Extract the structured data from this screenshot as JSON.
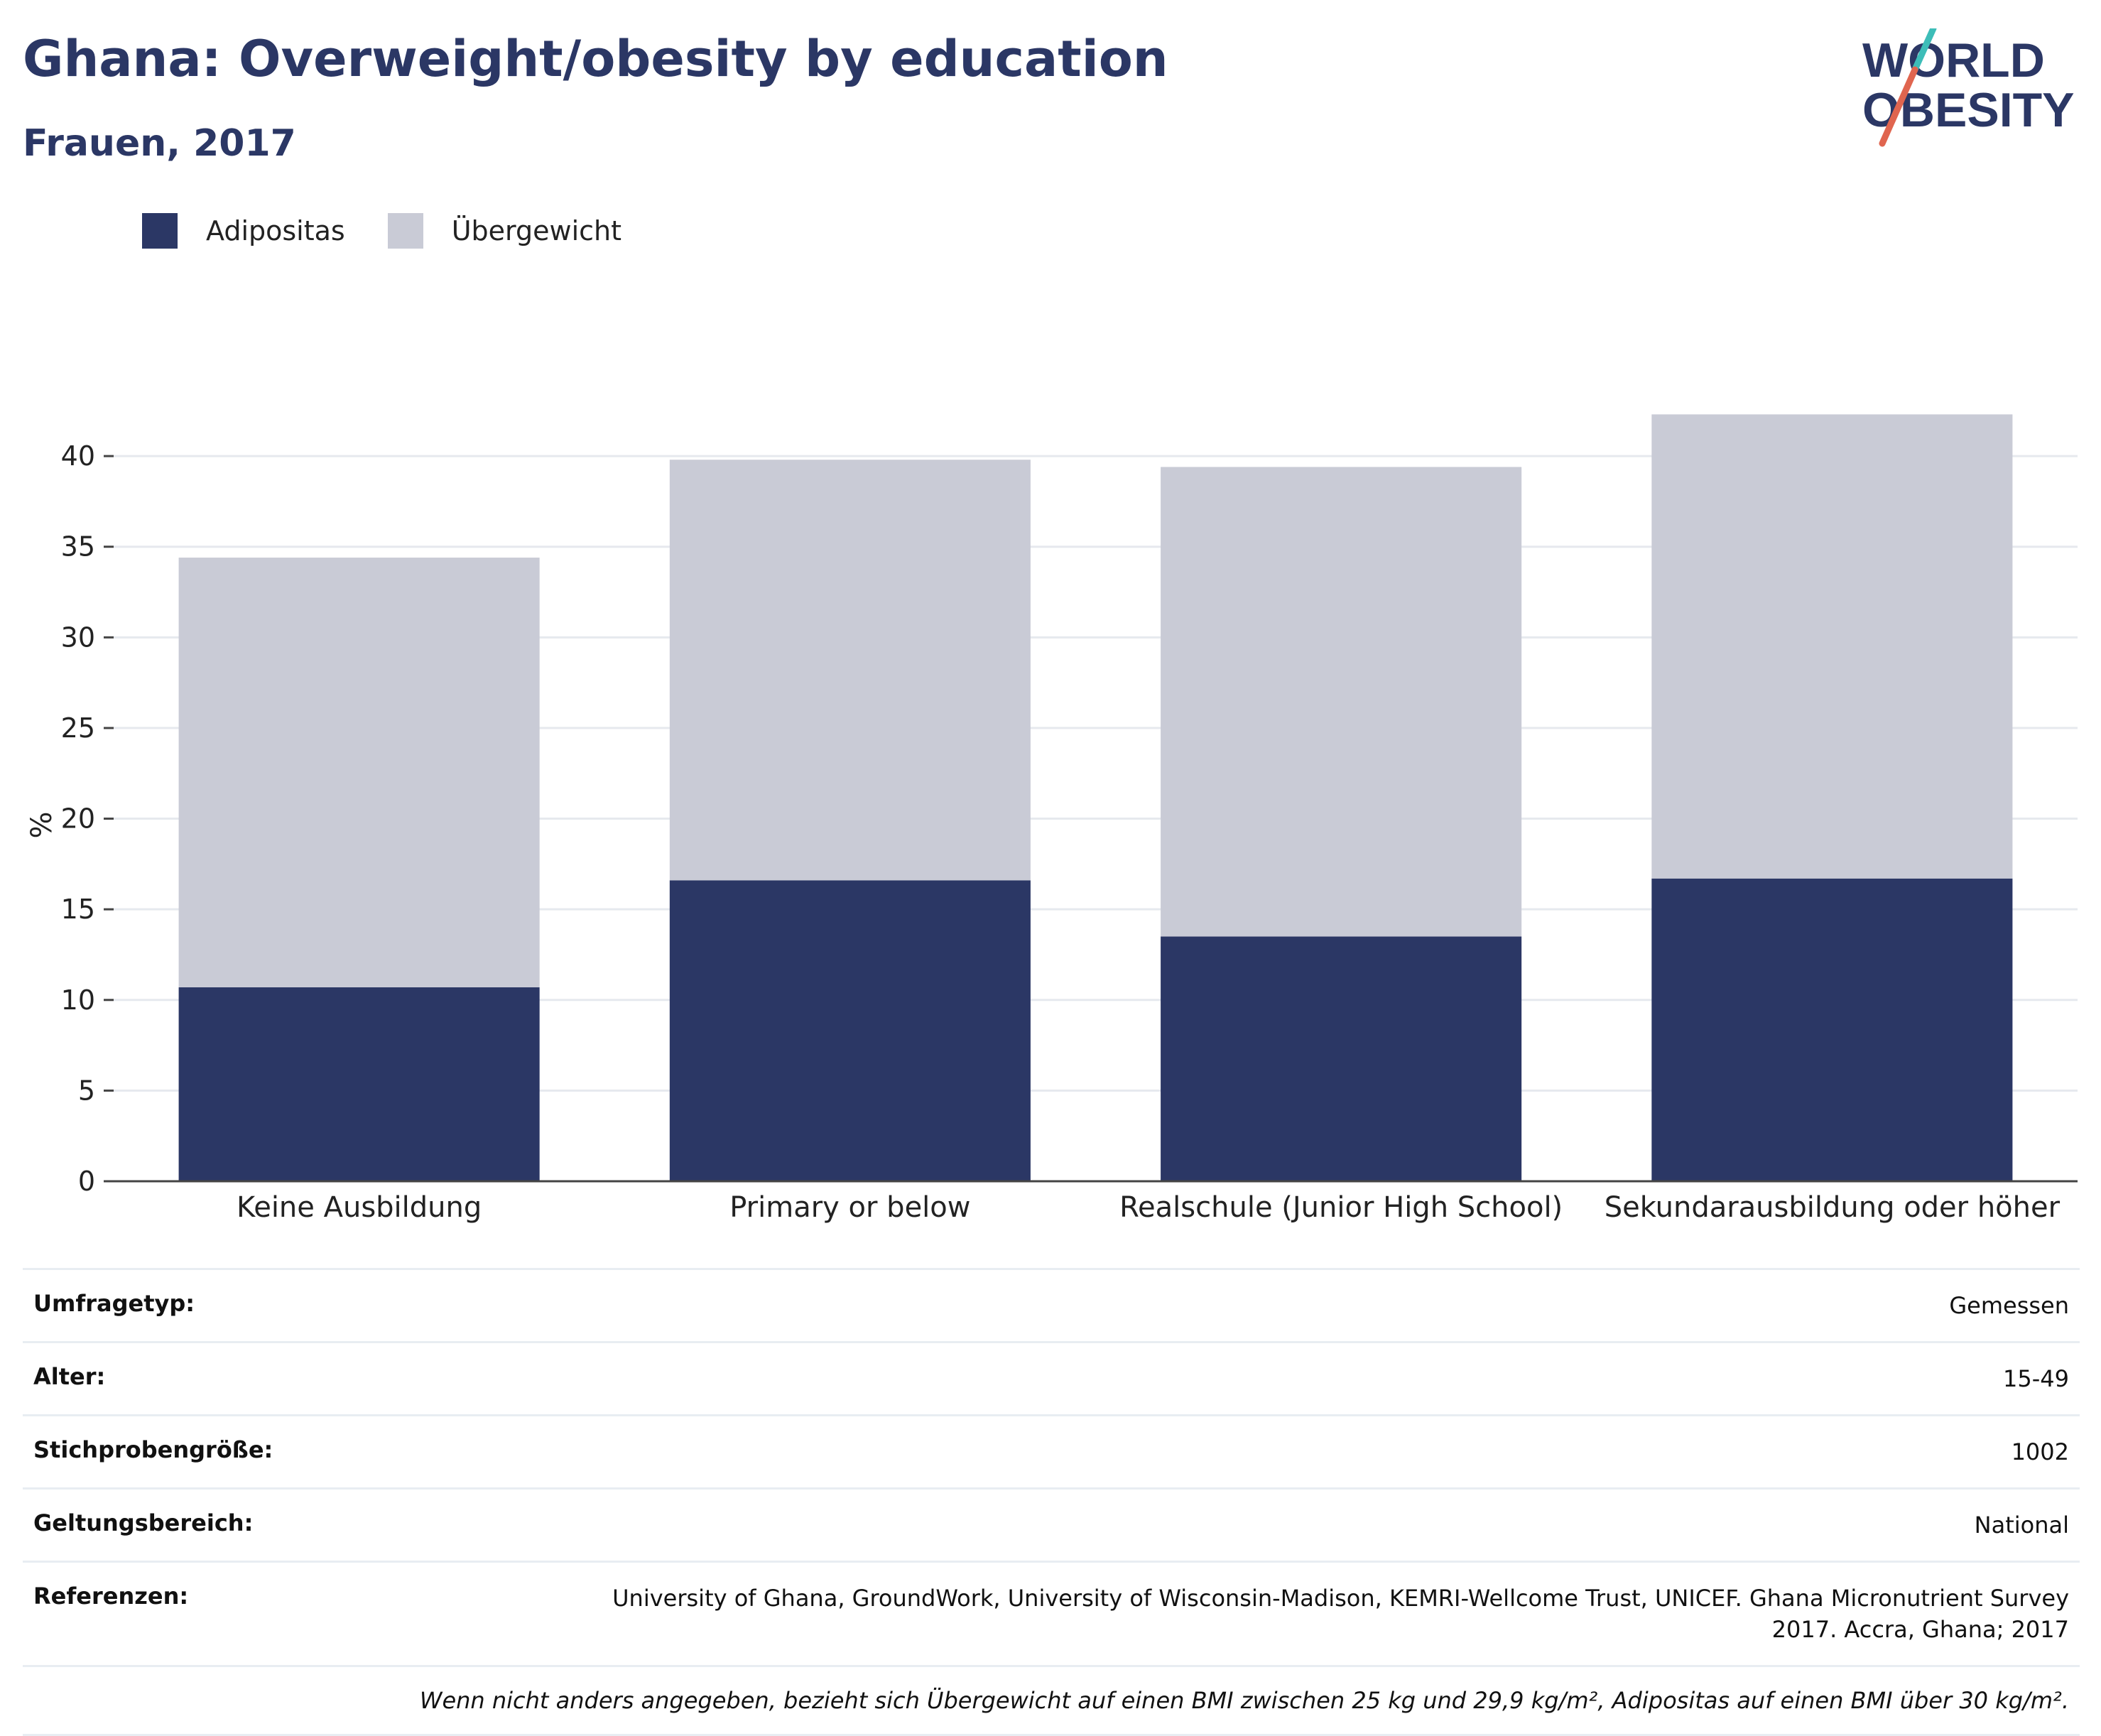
{
  "header": {
    "title": "Ghana: Overweight/obesity by education",
    "subtitle": "Frauen, 2017"
  },
  "logo": {
    "line1": "WORLD",
    "line2": "OBESITY"
  },
  "colors": {
    "adipositas": "#2b3765",
    "uebergewicht": "#c9cbd6",
    "title": "#2b3765",
    "logo_red": "#e0654f",
    "logo_teal": "#3dbdb8"
  },
  "legend": [
    {
      "label": "Adipositas"
    },
    {
      "label": "Übergewicht"
    }
  ],
  "chart_data": {
    "type": "bar",
    "stacked": true,
    "categories": [
      "Keine Ausbildung",
      "Primary or below",
      "Realschule (Junior High School)",
      "Sekundarausbildung oder höher"
    ],
    "series": [
      {
        "name": "Adipositas",
        "values": [
          10.7,
          16.6,
          13.5,
          16.7
        ]
      },
      {
        "name": "Übergewicht",
        "values": [
          23.7,
          23.2,
          25.9,
          25.6
        ]
      }
    ],
    "ylabel": "%",
    "ylim": [
      0,
      44
    ],
    "yticks": [
      0,
      5,
      10,
      15,
      20,
      25,
      30,
      35,
      40
    ],
    "grid": true
  },
  "info": {
    "survey_type": {
      "label": "Umfragetyp:",
      "value": "Gemessen"
    },
    "age": {
      "label": "Alter:",
      "value": "15-49"
    },
    "sample_size": {
      "label": "Stichprobengröße:",
      "value": "1002"
    },
    "scope": {
      "label": "Geltungsbereich:",
      "value": "National"
    },
    "references": {
      "label": "Referenzen:",
      "value": "University of Ghana, GroundWork, University of Wisconsin-Madison, KEMRI-Wellcome Trust, UNICEF. Ghana Micronutrient Survey 2017. Accra, Ghana; 2017"
    },
    "note": "Wenn nicht anders angegeben, bezieht sich Übergewicht auf einen BMI zwischen 25 kg und 29,9 kg/m², Adipositas auf einen BMI über 30 kg/m²."
  }
}
